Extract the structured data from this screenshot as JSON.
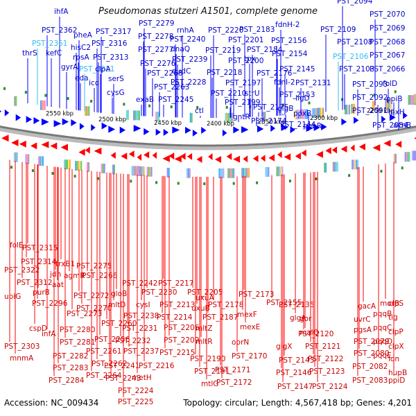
{
  "title": "Pseudomonas stutzeri A1501, complete genome",
  "footer": {
    "accession": "Accession: NC_009434",
    "stats": "Topology: circular; Length: 4,567,418 bp; Genes: 4,201"
  },
  "colors": {
    "plus_strand": "#0000ff",
    "minus_strand": "#ff0000",
    "highlight_gene": "#33bbee",
    "plus_label": "#0000cc",
    "minus_label": "#cc0000",
    "backbone": "#777777",
    "tick_marker": "#2e8b2e"
  },
  "scale_ticks": [
    "2550 kbp",
    "2500 kbp",
    "2450 kbp",
    "2400 kbp",
    "2350 kbp",
    "2300 kbp",
    "2250 kbp"
  ],
  "top_labels": [
    "ihfA",
    "PST_2362",
    "PST_2361",
    "thrS",
    "kefC",
    "pheA",
    "hisC2",
    "rpsA",
    "gyrA",
    "PST_2321",
    "eda",
    "PST_2317",
    "PST_2316",
    "PST_2313",
    "clpA",
    "icd",
    "serS",
    "cysG",
    "PST_2279",
    "PST_2278",
    "PST_2277",
    "PST_2276",
    "PST_2268",
    "PST_2263",
    "exaB",
    "PST_2245",
    "rnhA",
    "PST_2240",
    "dnaQ",
    "PST_2239",
    "nudC",
    "PST_2228",
    "PST_2220",
    "PST_2219",
    "PST_2218",
    "PST_2210",
    "ctl",
    "PST_2201",
    "PST_2200",
    "PST_2197",
    "PST_2199",
    "gntR",
    "PST_2183",
    "PST_2184",
    "tpx",
    "PST_2176",
    "strU",
    "PST_2175",
    "PST_2174",
    "fdnH-2",
    "PST_2156",
    "PST_2154",
    "PST_2145",
    "fdnI-2",
    "PST_2153",
    "glgB",
    "PST_2144",
    "PST_2131",
    "ligD",
    "poxB",
    "pobR",
    "PST_2094",
    "PST_2109",
    "PST_2108",
    "PST_2106",
    "PST_2103",
    "PST_2093",
    "PST_2092",
    "PST_2091",
    "PST_2084",
    "PST_2070",
    "PST_2069",
    "PST_2068",
    "PST_2067",
    "PST_2066",
    "folD",
    "ppiB",
    "lpxH",
    "acnB"
  ],
  "bottom_labels": [
    "folE",
    "PST_2315",
    "PST_2314",
    "PST_2322",
    "PST_2312",
    "purB",
    "ubiG",
    "trxB1",
    "jdh",
    "aat",
    "PST_2296",
    "infA",
    "cspD",
    "mnmA",
    "PST_2303",
    "PST_2275",
    "agmR",
    "PST_2266",
    "PST_2272",
    "PST_2270",
    "PST_2273",
    "PST_2280",
    "PST_2281",
    "PST_2282",
    "PST_2283",
    "PST_2284",
    "PST_2264",
    "PST_2262",
    "PST_2261",
    "PST_2256",
    "PST_2260",
    "gloB",
    "mltD",
    "PST_2241",
    "PST_2243",
    "PST_2224",
    "PST_2225",
    "metH",
    "PST_2216",
    "PST_2237",
    "PST_2232",
    "PST_2231",
    "PST_2238",
    "cysI",
    "PST_2230",
    "PST_2242",
    "PST_2217",
    "PST_2213",
    "PST_2214",
    "PST_2206",
    "PST_2209",
    "PST_2215",
    "PST_2205",
    "uxuB",
    "uxuA",
    "mltZ",
    "mltR",
    "PST_2190",
    "PST_2191",
    "mtlG",
    "PST_2187",
    "PST_2178",
    "PST_2173",
    "mexF",
    "mexE",
    "oprN",
    "PST_2170",
    "PST_2171",
    "PST_2172",
    "PST_2155",
    "PST_2135",
    "glgA",
    "malQ",
    "glgX",
    "PST_2143",
    "PST_2146",
    "PST_2147",
    "gor",
    "PST_2120",
    "PST_2121",
    "PST_2122",
    "PST_2123",
    "PST_2124",
    "gacA",
    "uvrC",
    "pgsA",
    "PST_2079",
    "PST_2080",
    "PST_2082",
    "PST_2083",
    "morB",
    "pqqB",
    "pqqC",
    "pqqD",
    "pqqE",
    "clpS",
    "tig",
    "clpP",
    "clpX",
    "lon",
    "hupB",
    "ppiD"
  ]
}
